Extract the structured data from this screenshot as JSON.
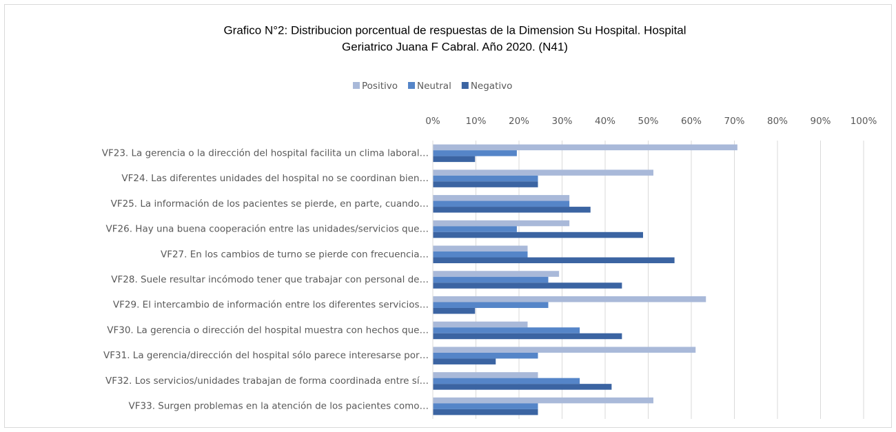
{
  "chart_data": {
    "type": "bar",
    "orientation": "horizontal",
    "title": [
      "Grafico N°2: Distribucion porcentual de respuestas de la Dimension  Su Hospital. Hospital",
      "Geriatrico Juana F Cabral. Año 2020. (N41)"
    ],
    "categories": [
      "VF23. La gerencia o la dirección del hospital facilita un clima laboral…",
      "VF24. Las diferentes unidades del hospital no se coordinan bien…",
      "VF25. La información de los pacientes se pierde, en parte, cuando…",
      "VF26. Hay una buena cooperación entre las unidades/servicios que…",
      "VF27. En los cambios de turno se pierde con frecuencia…",
      "VF28. Suele resultar incómodo tener que trabajar con personal de…",
      "VF29. El intercambio de información entre los diferentes servicios…",
      "VF30. La gerencia o dirección del hospital muestra con hechos que…",
      "VF31. La gerencia/dirección del hospital sólo parece interesarse por…",
      "VF32. Los servicios/unidades trabajan de forma coordinada entre sí…",
      "VF33. Surgen problemas en la atención de los pacientes como…"
    ],
    "series": [
      {
        "name": "Positivo",
        "color": "#a9b9d9",
        "values": [
          70.7,
          51.2,
          31.7,
          31.7,
          22.0,
          29.3,
          63.4,
          22.0,
          61.0,
          24.4,
          51.2
        ]
      },
      {
        "name": "Neutral",
        "color": "#5585c8",
        "values": [
          19.5,
          24.4,
          31.7,
          19.5,
          22.0,
          26.8,
          26.8,
          34.1,
          24.4,
          34.1,
          24.4
        ]
      },
      {
        "name": "Negativo",
        "color": "#3b64a2",
        "values": [
          9.8,
          24.4,
          36.6,
          48.8,
          56.1,
          43.9,
          9.8,
          43.9,
          14.6,
          41.5,
          24.4
        ]
      }
    ],
    "xlim": [
      0,
      100
    ],
    "xticks": [
      {
        "value": 0,
        "label": "0%"
      },
      {
        "value": 10,
        "label": "10%"
      },
      {
        "value": 20,
        "label": "20%"
      },
      {
        "value": 30,
        "label": "30%"
      },
      {
        "value": 40,
        "label": "40%"
      },
      {
        "value": 50,
        "label": "50%"
      },
      {
        "value": 60,
        "label": "60%"
      },
      {
        "value": 70,
        "label": "70%"
      },
      {
        "value": 80,
        "label": "80%"
      },
      {
        "value": 90,
        "label": "90%"
      },
      {
        "value": 100,
        "label": "100%"
      }
    ],
    "grid": true,
    "legend": "top"
  }
}
